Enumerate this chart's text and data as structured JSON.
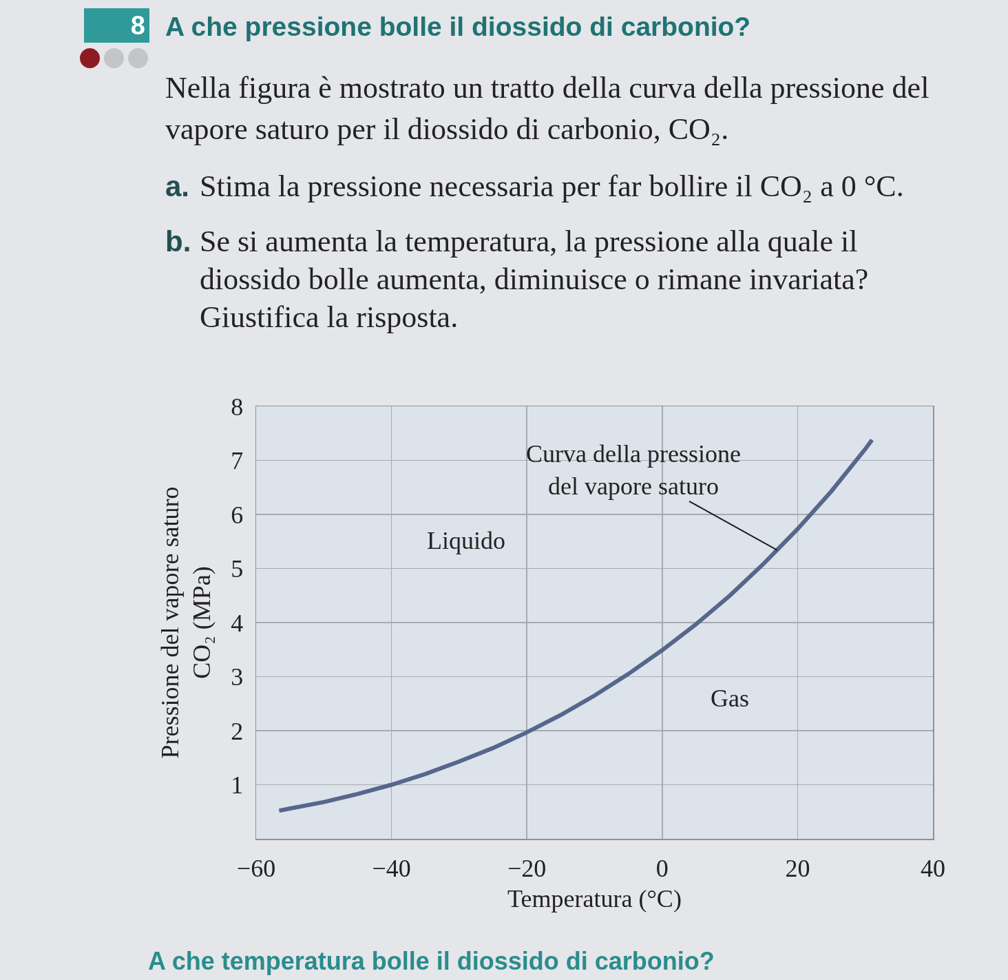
{
  "chart_data": {
    "type": "line",
    "title": "A che pressione bolle il diossido di carbonio?",
    "subtitle": "Nella figura è mostrato un tratto della curva della pressione del vapore saturo per il diossido di carbonio, CO₂.",
    "annotations": [
      "8",
      "a. Stima la pressione necessaria per far bollire il CO₂ a 0 °C.",
      "b. Se si aumenta la temperatura, la pressione alla quale il diossido bolle aumenta, diminuisce o rimane invariata? Giustifica la risposta.",
      {
        "text": "Curva della pressione\ndel vapore saturo",
        "x": 17,
        "y": 5.34
      },
      "Liquido",
      "Gas",
      "A che temperatura bolle il diossido di carbonio?"
    ],
    "xlabel": "Temperatura (°C)",
    "ylabel": "Pressione del vapore saturo\nCO₂ (MPa)",
    "x": [
      -56.6,
      -55,
      -50,
      -45,
      -40,
      -35,
      -30,
      -25,
      -20,
      -15,
      -10,
      -5,
      0,
      5,
      10,
      15,
      20,
      25,
      30,
      31
    ],
    "values": [
      0.52,
      0.56,
      0.68,
      0.83,
      1.0,
      1.2,
      1.43,
      1.68,
      1.97,
      2.29,
      2.65,
      3.05,
      3.49,
      3.97,
      4.5,
      5.09,
      5.73,
      6.43,
      7.21,
      7.38
    ],
    "color": "#56668c",
    "xlim": [
      -60,
      40
    ],
    "xticks": [
      -60,
      -40,
      -20,
      0,
      20,
      40
    ],
    "ylim": [
      0,
      8
    ],
    "yticks": [
      1,
      2,
      3,
      4,
      5,
      6,
      7,
      8
    ],
    "grid": true
  }
}
